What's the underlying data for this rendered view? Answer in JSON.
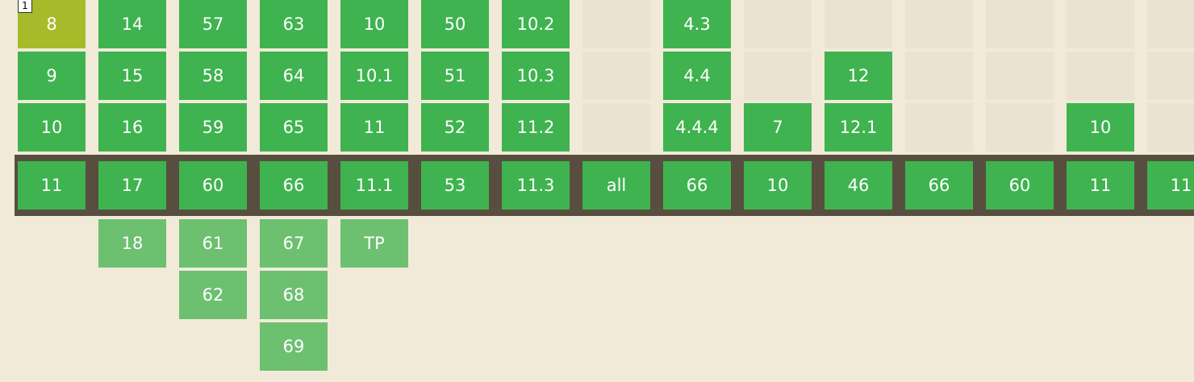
{
  "note_badge": "1",
  "colors": {
    "page_background": "#f2ead9",
    "supported": "#3fb34f",
    "future": "#6cc070",
    "partial": "#a6bb2a",
    "no_data": "#ebe3d1",
    "current_band": "#584e3f"
  },
  "columns": [
    {
      "past": [
        {
          "v": "8",
          "s": "partial"
        },
        {
          "v": "9",
          "s": "supported"
        },
        {
          "v": "10",
          "s": "supported"
        }
      ],
      "current": {
        "v": "11",
        "s": "supported"
      },
      "future": []
    },
    {
      "past": [
        {
          "v": "14",
          "s": "supported"
        },
        {
          "v": "15",
          "s": "supported"
        },
        {
          "v": "16",
          "s": "supported"
        }
      ],
      "current": {
        "v": "17",
        "s": "supported"
      },
      "future": [
        {
          "v": "18",
          "s": "future"
        }
      ]
    },
    {
      "past": [
        {
          "v": "57",
          "s": "supported"
        },
        {
          "v": "58",
          "s": "supported"
        },
        {
          "v": "59",
          "s": "supported"
        }
      ],
      "current": {
        "v": "60",
        "s": "supported"
      },
      "future": [
        {
          "v": "61",
          "s": "future"
        },
        {
          "v": "62",
          "s": "future"
        }
      ]
    },
    {
      "past": [
        {
          "v": "63",
          "s": "supported"
        },
        {
          "v": "64",
          "s": "supported"
        },
        {
          "v": "65",
          "s": "supported"
        }
      ],
      "current": {
        "v": "66",
        "s": "supported"
      },
      "future": [
        {
          "v": "67",
          "s": "future"
        },
        {
          "v": "68",
          "s": "future"
        },
        {
          "v": "69",
          "s": "future"
        }
      ]
    },
    {
      "past": [
        {
          "v": "10",
          "s": "supported"
        },
        {
          "v": "10.1",
          "s": "supported"
        },
        {
          "v": "11",
          "s": "supported"
        }
      ],
      "current": {
        "v": "11.1",
        "s": "supported"
      },
      "future": [
        {
          "v": "TP",
          "s": "future"
        }
      ]
    },
    {
      "past": [
        {
          "v": "50",
          "s": "supported"
        },
        {
          "v": "51",
          "s": "supported"
        },
        {
          "v": "52",
          "s": "supported"
        }
      ],
      "current": {
        "v": "53",
        "s": "supported"
      },
      "future": []
    },
    {
      "past": [
        {
          "v": "10.2",
          "s": "supported"
        },
        {
          "v": "10.3",
          "s": "supported"
        },
        {
          "v": "11.2",
          "s": "supported"
        }
      ],
      "current": {
        "v": "11.3",
        "s": "supported"
      },
      "future": []
    },
    {
      "past": [
        {
          "v": "",
          "s": "empty"
        },
        {
          "v": "",
          "s": "empty"
        },
        {
          "v": "",
          "s": "empty"
        }
      ],
      "current": {
        "v": "all",
        "s": "supported"
      },
      "future": []
    },
    {
      "past": [
        {
          "v": "4.3",
          "s": "supported"
        },
        {
          "v": "4.4",
          "s": "supported"
        },
        {
          "v": "4.4.4",
          "s": "supported"
        }
      ],
      "current": {
        "v": "66",
        "s": "supported"
      },
      "future": []
    },
    {
      "past": [
        {
          "v": "",
          "s": "empty"
        },
        {
          "v": "",
          "s": "empty"
        },
        {
          "v": "7",
          "s": "supported"
        }
      ],
      "current": {
        "v": "10",
        "s": "supported"
      },
      "future": []
    },
    {
      "past": [
        {
          "v": "",
          "s": "empty"
        },
        {
          "v": "12",
          "s": "supported"
        },
        {
          "v": "12.1",
          "s": "supported"
        }
      ],
      "current": {
        "v": "46",
        "s": "supported"
      },
      "future": []
    },
    {
      "past": [
        {
          "v": "",
          "s": "empty"
        },
        {
          "v": "",
          "s": "empty"
        },
        {
          "v": "",
          "s": "empty"
        }
      ],
      "current": {
        "v": "66",
        "s": "supported"
      },
      "future": []
    },
    {
      "past": [
        {
          "v": "",
          "s": "empty"
        },
        {
          "v": "",
          "s": "empty"
        },
        {
          "v": "",
          "s": "empty"
        }
      ],
      "current": {
        "v": "60",
        "s": "supported"
      },
      "future": []
    },
    {
      "past": [
        {
          "v": "",
          "s": "empty"
        },
        {
          "v": "",
          "s": "empty"
        },
        {
          "v": "10",
          "s": "supported"
        }
      ],
      "current": {
        "v": "11",
        "s": "supported"
      },
      "future": []
    },
    {
      "past": [
        {
          "v": "",
          "s": "empty"
        },
        {
          "v": "",
          "s": "empty"
        },
        {
          "v": "",
          "s": "empty"
        }
      ],
      "current": {
        "v": "11",
        "s": "supported"
      },
      "future": []
    }
  ]
}
